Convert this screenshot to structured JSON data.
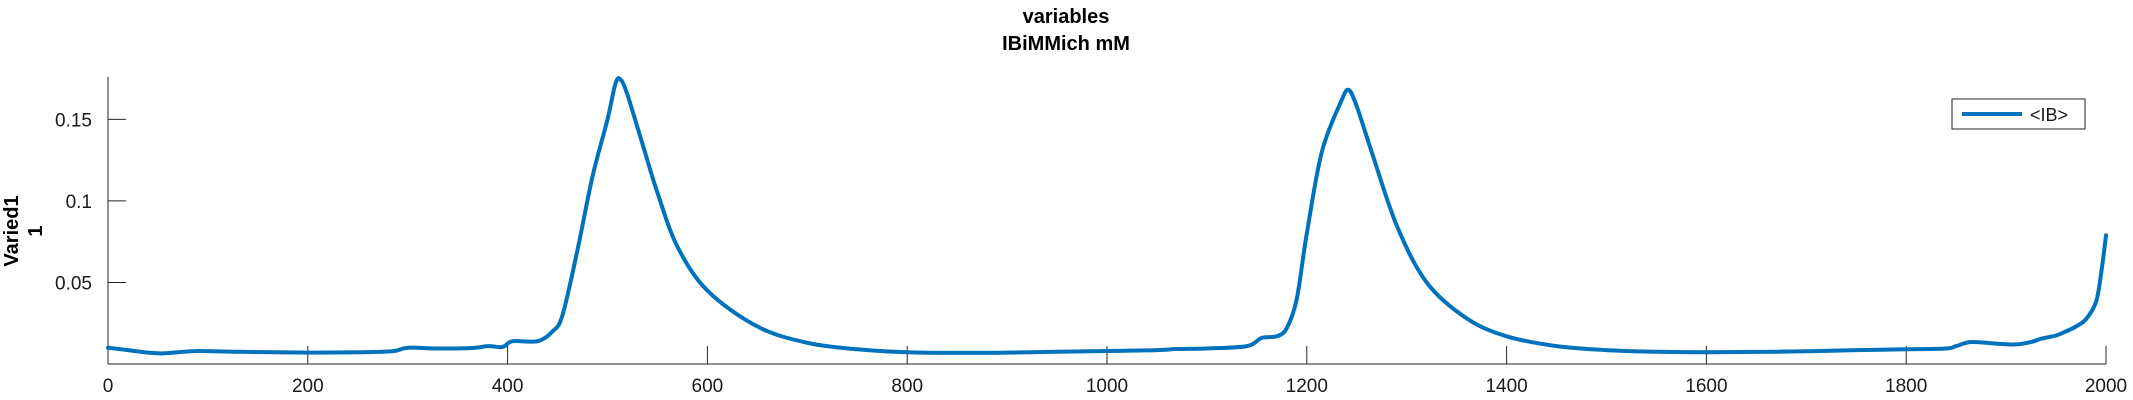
{
  "chart_data": {
    "type": "line",
    "title_lines": [
      "variables",
      "IBiMMich mM"
    ],
    "ylabel_lines": [
      "Varied1",
      "1"
    ],
    "xlabel": "",
    "xlim": [
      0,
      2000
    ],
    "ylim": [
      0.0,
      0.176
    ],
    "xticks": [
      0,
      200,
      400,
      600,
      800,
      1000,
      1200,
      1400,
      1600,
      1800,
      2000
    ],
    "xtick_labels": [
      "0",
      "200",
      "400",
      "600",
      "800",
      "1000",
      "1200",
      "1400",
      "1600",
      "1800",
      "2000"
    ],
    "yticks": [
      0.05,
      0.1,
      0.15
    ],
    "ytick_labels": [
      "0.05",
      "0.1",
      "0.15"
    ],
    "grid": false,
    "legend": {
      "position": "top-right",
      "entries": [
        "<IB>"
      ]
    },
    "series": [
      {
        "name": "<IB>",
        "color": "#0072BD",
        "points": [
          [
            0,
            0.01
          ],
          [
            20,
            0.0085
          ],
          [
            40,
            0.007
          ],
          [
            55,
            0.0065
          ],
          [
            70,
            0.0072
          ],
          [
            90,
            0.008
          ],
          [
            130,
            0.0075
          ],
          [
            200,
            0.007
          ],
          [
            250,
            0.0072
          ],
          [
            285,
            0.0078
          ],
          [
            300,
            0.01
          ],
          [
            330,
            0.0095
          ],
          [
            365,
            0.0098
          ],
          [
            380,
            0.011
          ],
          [
            395,
            0.0105
          ],
          [
            405,
            0.014
          ],
          [
            430,
            0.014
          ],
          [
            445,
            0.02
          ],
          [
            455,
            0.03
          ],
          [
            470,
            0.07
          ],
          [
            485,
            0.115
          ],
          [
            500,
            0.15
          ],
          [
            508,
            0.172
          ],
          [
            513,
            0.1745
          ],
          [
            520,
            0.165
          ],
          [
            535,
            0.135
          ],
          [
            550,
            0.105
          ],
          [
            570,
            0.072
          ],
          [
            600,
            0.045
          ],
          [
            650,
            0.023
          ],
          [
            700,
            0.013
          ],
          [
            750,
            0.009
          ],
          [
            800,
            0.0072
          ],
          [
            850,
            0.0068
          ],
          [
            900,
            0.007
          ],
          [
            950,
            0.0075
          ],
          [
            1000,
            0.008
          ],
          [
            1050,
            0.0085
          ],
          [
            1070,
            0.0092
          ],
          [
            1100,
            0.0095
          ],
          [
            1140,
            0.011
          ],
          [
            1155,
            0.016
          ],
          [
            1170,
            0.017
          ],
          [
            1180,
            0.022
          ],
          [
            1190,
            0.04
          ],
          [
            1200,
            0.08
          ],
          [
            1215,
            0.13
          ],
          [
            1235,
            0.162
          ],
          [
            1242,
            0.168
          ],
          [
            1250,
            0.158
          ],
          [
            1265,
            0.13
          ],
          [
            1290,
            0.085
          ],
          [
            1320,
            0.05
          ],
          [
            1360,
            0.028
          ],
          [
            1400,
            0.017
          ],
          [
            1450,
            0.011
          ],
          [
            1500,
            0.0085
          ],
          [
            1550,
            0.0075
          ],
          [
            1600,
            0.0072
          ],
          [
            1650,
            0.0074
          ],
          [
            1700,
            0.0078
          ],
          [
            1750,
            0.0085
          ],
          [
            1800,
            0.009
          ],
          [
            1840,
            0.0095
          ],
          [
            1850,
            0.011
          ],
          [
            1865,
            0.0135
          ],
          [
            1890,
            0.0125
          ],
          [
            1910,
            0.012
          ],
          [
            1925,
            0.0135
          ],
          [
            1935,
            0.0155
          ],
          [
            1950,
            0.0175
          ],
          [
            1960,
            0.02
          ],
          [
            1970,
            0.023
          ],
          [
            1980,
            0.0275
          ],
          [
            1990,
            0.038
          ],
          [
            1995,
            0.055
          ],
          [
            2000,
            0.079
          ]
        ]
      }
    ]
  }
}
